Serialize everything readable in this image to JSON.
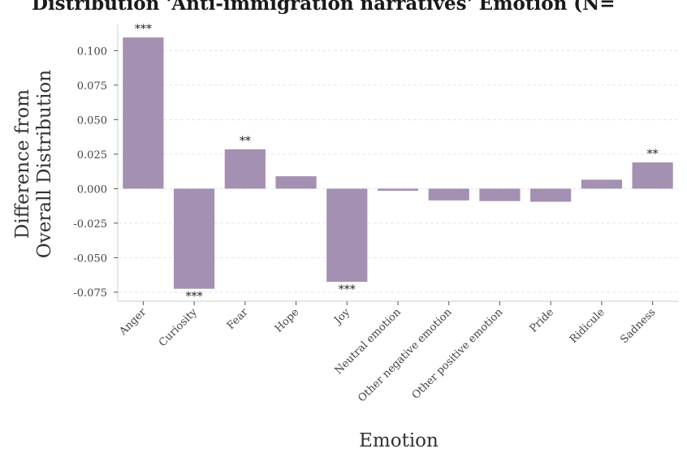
{
  "chart_data": {
    "type": "bar",
    "title": "Distribution 'Anti-immigration narratives' Emotion (N=",
    "xlabel": "Emotion",
    "ylabel_line1": "Difference from",
    "ylabel_line2": "Overall Distribution",
    "categories": [
      "Anger",
      "Curiosity",
      "Fear",
      "Hope",
      "Joy",
      "Neutral emotion",
      "Other negative emotion",
      "Other positive emotion",
      "Pride",
      "Ridicule",
      "Sadness"
    ],
    "values": [
      0.1095,
      -0.0725,
      0.0285,
      0.009,
      -0.0675,
      -0.0015,
      -0.0085,
      -0.009,
      -0.0095,
      0.0065,
      0.019
    ],
    "significance": [
      "***",
      "***",
      "**",
      "",
      "***",
      "",
      "",
      "",
      "",
      "",
      "**"
    ],
    "yticks": [
      "0.100",
      "0.075",
      "0.050",
      "0.025",
      "0.000",
      "-0.025",
      "-0.050",
      "-0.075"
    ],
    "ylim": [
      -0.0815,
      0.119
    ],
    "grid": true,
    "bar_color": "#a390b2"
  }
}
